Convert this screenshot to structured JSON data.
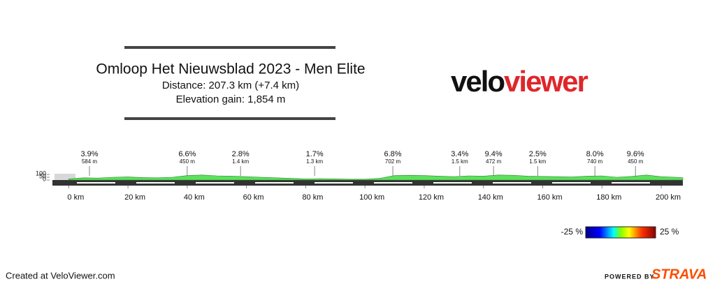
{
  "chart_data": {
    "type": "area",
    "title": "Omloop Het Nieuwsblad 2023 - Men Elite",
    "subtitle": [
      "Distance: 207.3 km (+7.4 km)",
      "Elevation gain: 1,854 m"
    ],
    "x": [
      0,
      5,
      10,
      15,
      20,
      25,
      30,
      35,
      40,
      45,
      50,
      55,
      60,
      65,
      70,
      75,
      80,
      85,
      90,
      95,
      100,
      105,
      110,
      115,
      120,
      125,
      130,
      135,
      140,
      145,
      150,
      155,
      160,
      165,
      170,
      175,
      180,
      185,
      190,
      195,
      200,
      205,
      207.3
    ],
    "values": [
      20,
      40,
      35,
      50,
      55,
      45,
      40,
      50,
      80,
      90,
      75,
      70,
      60,
      50,
      40,
      30,
      20,
      25,
      20,
      15,
      15,
      30,
      80,
      85,
      80,
      70,
      60,
      75,
      70,
      90,
      85,
      70,
      65,
      60,
      55,
      70,
      75,
      50,
      65,
      90,
      60,
      50,
      40
    ],
    "color": "#5ee05e",
    "xlim": [
      -5.5,
      207.3
    ],
    "xticks": [
      {
        "value": 0,
        "label": "0 km"
      },
      {
        "value": 20,
        "label": "20 km"
      },
      {
        "value": 40,
        "label": "40 km"
      },
      {
        "value": 60,
        "label": "60 km"
      },
      {
        "value": 80,
        "label": "80 km"
      },
      {
        "value": 100,
        "label": "100 km"
      },
      {
        "value": 120,
        "label": "120 km"
      },
      {
        "value": 140,
        "label": "140 km"
      },
      {
        "value": 160,
        "label": "160 km"
      },
      {
        "value": 180,
        "label": "180 km"
      },
      {
        "value": 200,
        "label": "200 km"
      }
    ],
    "ylim": [
      0,
      100
    ],
    "yticks": [
      0,
      50,
      100
    ],
    "climbs": [
      {
        "x": 7,
        "grade": "3.9%",
        "length": "584 m"
      },
      {
        "x": 40,
        "grade": "6.6%",
        "length": "450 m"
      },
      {
        "x": 58,
        "grade": "2.8%",
        "length": "1.4 km"
      },
      {
        "x": 83,
        "grade": "1.7%",
        "length": "1.3 km"
      },
      {
        "x": 109.4,
        "grade": "6.8%",
        "length": "702 m"
      },
      {
        "x": 132,
        "grade": "3.4%",
        "length": "1.5 km"
      },
      {
        "x": 143.4,
        "grade": "9.4%",
        "length": "472 m"
      },
      {
        "x": 158.3,
        "grade": "2.5%",
        "length": "1.5 km"
      },
      {
        "x": 177.6,
        "grade": "8.0%",
        "length": "740 m"
      },
      {
        "x": 191.3,
        "grade": "9.6%",
        "length": "450 m"
      }
    ],
    "gradient_scale": [
      {
        "value": -25,
        "label": "-25 %"
      },
      {
        "value": 25,
        "label": "25 %"
      }
    ]
  },
  "logo": {
    "first": "velo",
    "second": "viewer"
  },
  "footer": {
    "credit": "Created at VeloViewer.com",
    "powered": "POWERED BY",
    "brand": "STRAVA"
  }
}
